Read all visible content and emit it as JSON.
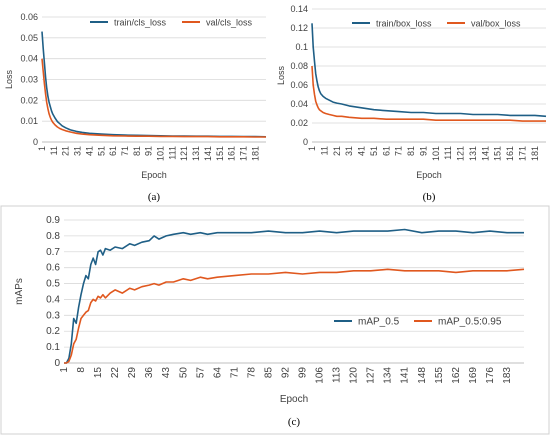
{
  "chart_data": [
    {
      "id": "a",
      "panel_label": "(a)",
      "type": "line",
      "xlabel": "Epoch",
      "ylabel": "Loss",
      "ylim": [
        0,
        0.06
      ],
      "yticks": [
        0,
        0.01,
        0.02,
        0.03,
        0.04,
        0.05,
        0.06
      ],
      "ytick_labels": [
        "0",
        "0.01",
        "0.02",
        "0.03",
        "0.04",
        "0.05",
        "0.06"
      ],
      "xlim": [
        1,
        190
      ],
      "xticks": [
        1,
        11,
        21,
        31,
        41,
        51,
        61,
        71,
        81,
        91,
        101,
        111,
        121,
        131,
        141,
        151,
        161,
        171,
        181
      ],
      "grid": "horizontal",
      "legend": "top-right",
      "series": [
        {
          "name": "train/cls_loss",
          "color": "#1f5f86",
          "x": [
            1,
            2,
            3,
            4,
            5,
            6,
            7,
            8,
            9,
            10,
            12,
            14,
            16,
            18,
            21,
            25,
            30,
            35,
            41,
            51,
            61,
            71,
            81,
            91,
            101,
            111,
            121,
            131,
            141,
            151,
            161,
            171,
            181,
            190
          ],
          "y": [
            0.053,
            0.045,
            0.038,
            0.031,
            0.026,
            0.022,
            0.019,
            0.017,
            0.015,
            0.0135,
            0.0115,
            0.0098,
            0.0088,
            0.0078,
            0.0068,
            0.0058,
            0.0051,
            0.0046,
            0.0042,
            0.0038,
            0.0035,
            0.0033,
            0.0032,
            0.0031,
            0.003,
            0.0029,
            0.0029,
            0.0028,
            0.0028,
            0.0027,
            0.0027,
            0.0026,
            0.0026,
            0.0025
          ]
        },
        {
          "name": "val/cls_loss",
          "color": "#e0581f",
          "x": [
            1,
            2,
            3,
            4,
            5,
            6,
            7,
            8,
            9,
            10,
            12,
            14,
            16,
            18,
            21,
            25,
            30,
            35,
            41,
            51,
            61,
            71,
            81,
            91,
            101,
            111,
            121,
            131,
            141,
            151,
            161,
            171,
            181,
            190
          ],
          "y": [
            0.04,
            0.034,
            0.028,
            0.023,
            0.019,
            0.016,
            0.0135,
            0.0118,
            0.0105,
            0.0095,
            0.0082,
            0.0072,
            0.0065,
            0.006,
            0.0054,
            0.0048,
            0.0042,
            0.0038,
            0.0035,
            0.0032,
            0.003,
            0.0029,
            0.0028,
            0.0028,
            0.0027,
            0.0027,
            0.0026,
            0.0026,
            0.0026,
            0.0025,
            0.0025,
            0.0025,
            0.0024,
            0.0024
          ]
        }
      ]
    },
    {
      "id": "b",
      "panel_label": "(b)",
      "type": "line",
      "xlabel": "Epoch",
      "ylabel": "Loss",
      "ylim": [
        0,
        0.14
      ],
      "yticks": [
        0,
        0.02,
        0.04,
        0.06,
        0.08,
        0.1,
        0.12,
        0.14
      ],
      "ytick_labels": [
        "0",
        "0.02",
        "0.04",
        "0.06",
        "0.08",
        "0.1",
        "0.12",
        "0.14"
      ],
      "xlim": [
        1,
        190
      ],
      "xticks": [
        1,
        11,
        21,
        31,
        41,
        51,
        61,
        71,
        81,
        91,
        101,
        111,
        121,
        131,
        141,
        151,
        161,
        171,
        181
      ],
      "grid": "horizontal",
      "legend": "top-right",
      "series": [
        {
          "name": "train/box_loss",
          "color": "#1f5f86",
          "x": [
            1,
            2,
            3,
            4,
            5,
            6,
            7,
            8,
            10,
            12,
            15,
            18,
            21,
            25,
            31,
            41,
            51,
            61,
            71,
            81,
            91,
            101,
            111,
            121,
            131,
            141,
            151,
            161,
            171,
            181,
            190
          ],
          "y": [
            0.125,
            0.1,
            0.085,
            0.072,
            0.064,
            0.058,
            0.054,
            0.051,
            0.048,
            0.046,
            0.044,
            0.042,
            0.041,
            0.04,
            0.038,
            0.036,
            0.034,
            0.033,
            0.032,
            0.031,
            0.031,
            0.03,
            0.03,
            0.03,
            0.029,
            0.029,
            0.029,
            0.028,
            0.028,
            0.028,
            0.027
          ]
        },
        {
          "name": "val/box_loss",
          "color": "#e0581f",
          "x": [
            1,
            2,
            3,
            4,
            5,
            6,
            7,
            8,
            10,
            12,
            15,
            18,
            21,
            25,
            31,
            41,
            51,
            61,
            71,
            81,
            91,
            101,
            111,
            121,
            131,
            141,
            151,
            161,
            171,
            181,
            190
          ],
          "y": [
            0.08,
            0.06,
            0.05,
            0.043,
            0.039,
            0.036,
            0.034,
            0.033,
            0.031,
            0.03,
            0.029,
            0.028,
            0.027,
            0.027,
            0.026,
            0.025,
            0.025,
            0.024,
            0.024,
            0.024,
            0.024,
            0.023,
            0.023,
            0.023,
            0.023,
            0.023,
            0.023,
            0.023,
            0.022,
            0.022,
            0.022
          ]
        }
      ]
    },
    {
      "id": "c",
      "panel_label": "(c)",
      "type": "line",
      "xlabel": "Epoch",
      "ylabel": "mAPs",
      "ylim": [
        0,
        0.9
      ],
      "yticks": [
        0,
        0.1,
        0.2,
        0.3,
        0.4,
        0.5,
        0.6,
        0.7,
        0.8,
        0.9
      ],
      "ytick_labels": [
        "0",
        "0.1",
        "0.2",
        "0.3",
        "0.4",
        "0.5",
        "0.6",
        "0.7",
        "0.8",
        "0.9"
      ],
      "xlim": [
        1,
        190
      ],
      "xticks": [
        1,
        8,
        15,
        22,
        29,
        36,
        43,
        50,
        57,
        64,
        71,
        78,
        85,
        92,
        99,
        106,
        113,
        120,
        127,
        134,
        141,
        148,
        155,
        162,
        169,
        176,
        183
      ],
      "grid": "horizontal",
      "legend": "center-right",
      "series": [
        {
          "name": "mAP_0.5",
          "color": "#1f5f86",
          "x": [
            1,
            2,
            3,
            4,
            5,
            6,
            7,
            8,
            9,
            10,
            11,
            12,
            13,
            14,
            15,
            16,
            17,
            18,
            20,
            22,
            25,
            28,
            30,
            33,
            36,
            38,
            40,
            43,
            46,
            50,
            53,
            57,
            60,
            64,
            71,
            78,
            85,
            92,
            99,
            106,
            113,
            120,
            127,
            134,
            141,
            148,
            155,
            162,
            169,
            176,
            183,
            190
          ],
          "y": [
            0.0,
            0.0,
            0.03,
            0.12,
            0.28,
            0.25,
            0.35,
            0.43,
            0.5,
            0.55,
            0.53,
            0.62,
            0.66,
            0.62,
            0.7,
            0.71,
            0.68,
            0.72,
            0.71,
            0.73,
            0.72,
            0.75,
            0.74,
            0.76,
            0.77,
            0.8,
            0.78,
            0.8,
            0.81,
            0.82,
            0.81,
            0.82,
            0.81,
            0.82,
            0.82,
            0.82,
            0.83,
            0.82,
            0.82,
            0.83,
            0.82,
            0.83,
            0.83,
            0.83,
            0.84,
            0.82,
            0.83,
            0.83,
            0.82,
            0.83,
            0.82,
            0.82
          ]
        },
        {
          "name": "mAP_0.5:0.95",
          "color": "#e0581f",
          "x": [
            1,
            2,
            3,
            4,
            5,
            6,
            7,
            8,
            9,
            10,
            11,
            12,
            13,
            14,
            15,
            16,
            17,
            18,
            20,
            22,
            25,
            28,
            30,
            33,
            36,
            38,
            40,
            43,
            46,
            50,
            53,
            57,
            60,
            64,
            71,
            78,
            85,
            92,
            99,
            106,
            113,
            120,
            127,
            134,
            141,
            148,
            155,
            162,
            169,
            176,
            183,
            190
          ],
          "y": [
            0.0,
            0.0,
            0.01,
            0.05,
            0.12,
            0.15,
            0.22,
            0.28,
            0.3,
            0.32,
            0.33,
            0.38,
            0.4,
            0.39,
            0.42,
            0.41,
            0.43,
            0.41,
            0.44,
            0.46,
            0.44,
            0.47,
            0.46,
            0.48,
            0.49,
            0.5,
            0.49,
            0.51,
            0.51,
            0.53,
            0.52,
            0.54,
            0.53,
            0.54,
            0.55,
            0.56,
            0.56,
            0.57,
            0.56,
            0.57,
            0.57,
            0.58,
            0.58,
            0.59,
            0.58,
            0.58,
            0.58,
            0.57,
            0.58,
            0.58,
            0.58,
            0.59
          ]
        }
      ]
    }
  ]
}
